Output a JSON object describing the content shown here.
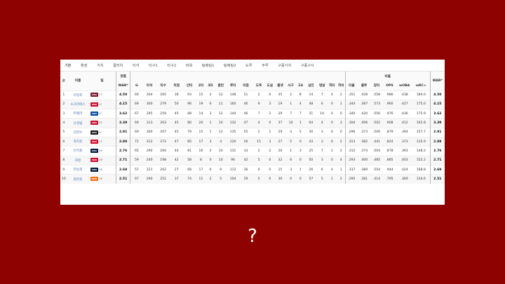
{
  "tabs": [
    "기본",
    "확장",
    "가치",
    "클러치",
    "타석",
    "타구1",
    "타구2",
    "파워",
    "팀배팅1",
    "팀배팅2",
    "도루",
    "주루",
    "구종가치",
    "구종구사"
  ],
  "headers": {
    "rank": "순",
    "name": "이름",
    "team": "팀",
    "sort_top": "정렬",
    "war": "WAR*",
    "ratio_group": "비율",
    "stats": [
      "G",
      "타석",
      "타수",
      "득점",
      "안타",
      "2타",
      "3타",
      "홈런",
      "루타",
      "타점",
      "도루",
      "도실",
      "볼넷",
      "사구",
      "고4",
      "삼진",
      "병살",
      "희타",
      "희비"
    ],
    "ratios": [
      "타율",
      "출루",
      "장타",
      "OPS",
      "wOBA",
      "wRC+"
    ],
    "war_end": "WAR*"
  },
  "rows": [
    {
      "rank": "1",
      "name": "이정후",
      "team_color": "#7a1a2e",
      "pos": "CF",
      "war": "4.50",
      "stats": [
        "69",
        "304",
        "265",
        "38",
        "93",
        "15",
        "2",
        "12",
        "148",
        "51",
        "2",
        "0",
        "35",
        "2",
        "8",
        "14",
        "7",
        "0",
        "2"
      ],
      "ratios": [
        ".351",
        ".428",
        ".558",
        ".986",
        ".438",
        "184.0"
      ]
    },
    {
      "rank": "2",
      "name": "소크라테스",
      "team_color": "#c8102e",
      "pos": "LF",
      "war": "4.15",
      "stats": [
        "69",
        "300",
        "279",
        "50",
        "96",
        "19",
        "6",
        "11",
        "160",
        "46",
        "9",
        "3",
        "19",
        "1",
        "4",
        "48",
        "6",
        "0",
        "1"
      ],
      "ratios": [
        ".344",
        ".387",
        ".573",
        ".960",
        ".427",
        "175.0"
      ]
    },
    {
      "rank": "3",
      "name": "피렐라",
      "team_color": "#074ca1",
      "pos": "LF",
      "war": "3.62",
      "stats": [
        "67",
        "295",
        "259",
        "45",
        "88",
        "14",
        "3",
        "12",
        "144",
        "46",
        "7",
        "2",
        "29",
        "7",
        "7",
        "31",
        "10",
        "0",
        "0"
      ],
      "ratios": [
        ".340",
        ".420",
        ".556",
        ".976",
        ".436",
        "175.9"
      ]
    },
    {
      "rank": "4",
      "name": "나성범",
      "team_color": "#c8102e",
      "pos": "RF",
      "war": "3.39",
      "stats": [
        "69",
        "313",
        "263",
        "45",
        "80",
        "20",
        "1",
        "10",
        "132",
        "47",
        "4",
        "0",
        "37",
        "10",
        "1",
        "64",
        "4",
        "0",
        "3"
      ],
      "ratios": [
        ".304",
        ".406",
        ".502",
        ".908",
        ".412",
        "162.8"
      ]
    },
    {
      "rank": "5",
      "name": "김현수",
      "team_color": "#1b1b1b",
      "pos": "LF",
      "war": "2.91",
      "stats": [
        "69",
        "300",
        "267",
        "45",
        "79",
        "15",
        "1",
        "13",
        "135",
        "55",
        "2",
        "1",
        "29",
        "4",
        "5",
        "30",
        "3",
        "0",
        "0"
      ],
      "ratios": [
        ".296",
        ".373",
        ".506",
        ".879",
        ".394",
        "157.7"
      ]
    },
    {
      "rank": "6",
      "name": "최지훈",
      "team_color": "#ce0e2d",
      "pos": "CF",
      "war": "2.88",
      "stats": [
        "71",
        "312",
        "272",
        "47",
        "85",
        "17",
        "3",
        "4",
        "120",
        "26",
        "15",
        "3",
        "27",
        "5",
        "0",
        "43",
        "3",
        "6",
        "2"
      ],
      "ratios": [
        ".313",
        ".382",
        ".441",
        ".824",
        ".373",
        "135.9"
      ]
    },
    {
      "rank": "7",
      "name": "안치홍",
      "team_color": "#041e42",
      "pos": "2B",
      "war": "2.76",
      "stats": [
        "65",
        "290",
        "260",
        "44",
        "81",
        "16",
        "2",
        "10",
        "131",
        "33",
        "2",
        "2",
        "26",
        "1",
        "3",
        "25",
        "7",
        "1",
        "2"
      ],
      "ratios": [
        ".312",
        ".374",
        ".504",
        ".878",
        ".393",
        "148.2"
      ]
    },
    {
      "rank": "8",
      "name": "최정",
      "team_color": "#ce0e2d",
      "pos": "3B",
      "war": "2.71",
      "stats": [
        "59",
        "240",
        "198",
        "42",
        "58",
        "8",
        "0",
        "10",
        "96",
        "42",
        "5",
        "0",
        "32",
        "6",
        "0",
        "50",
        "3",
        "0",
        "4"
      ],
      "ratios": [
        ".293",
        ".400",
        ".485",
        ".885",
        ".403",
        "152.2"
      ]
    },
    {
      "rank": "9",
      "name": "한동희",
      "team_color": "#041e42",
      "pos": "3B",
      "war": "2.69",
      "stats": [
        "57",
        "221",
        "202",
        "27",
        "68",
        "17",
        "0",
        "9",
        "112",
        "36",
        "0",
        "0",
        "15",
        "3",
        "1",
        "26",
        "6",
        "0",
        "1"
      ],
      "ratios": [
        ".337",
        ".389",
        ".554",
        ".944",
        ".424",
        "168.8"
      ]
    },
    {
      "rank": "10",
      "name": "정은원",
      "team_color": "#f37321",
      "pos": "2B",
      "war": "2.51",
      "stats": [
        "67",
        "290",
        "251",
        "37",
        "74",
        "11",
        "2",
        "5",
        "104",
        "29",
        "5",
        "0",
        "36",
        "0",
        "0",
        "57",
        "5",
        "1",
        "2"
      ],
      "ratios": [
        ".295",
        ".381",
        ".414",
        ".795",
        ".369",
        "134.6"
      ]
    }
  ],
  "question_mark": "?"
}
